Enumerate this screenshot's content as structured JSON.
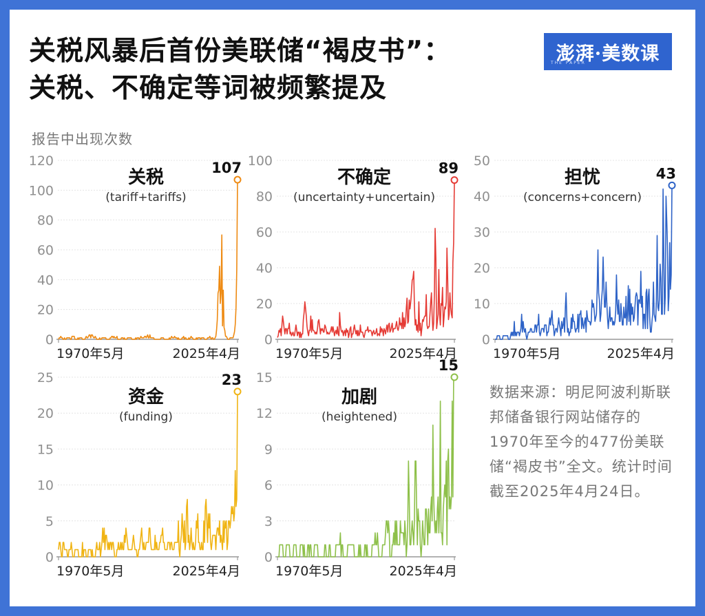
{
  "title_line1": "关税风暴后首份美联储“褐皮书”：",
  "title_line2": "关税、不确定等词被频繁提及",
  "logo": {
    "text": "澎湃·美数课",
    "subtext": "THE PAPER"
  },
  "unit_label": "报告中出现次数",
  "source_note": "数据来源：明尼阿波利斯联邦储备银行网站储存的1970年至今的477份美联储“褐皮书”全文。统计时间截至2025年4月24日。",
  "chart_data": [
    {
      "type": "line",
      "title": "关税",
      "subtitle": "(tariff+tariffs)",
      "color": "#ee8a12",
      "x_start": "1970年5月",
      "x_end": "2025年4月",
      "yticks": [
        0,
        20,
        40,
        60,
        80,
        100,
        120
      ],
      "ylim": [
        0,
        120
      ],
      "last_value": 107,
      "peak_label": "107",
      "anchors": [
        [
          0,
          0
        ],
        [
          0.3,
          1
        ],
        [
          0.7,
          0
        ],
        [
          1.2,
          2
        ],
        [
          2,
          1
        ],
        [
          2.5,
          0
        ],
        [
          3.5,
          1
        ],
        [
          4,
          0
        ],
        [
          5,
          1
        ],
        [
          6,
          1
        ],
        [
          7,
          0
        ],
        [
          8,
          2
        ],
        [
          9,
          1
        ],
        [
          10,
          0
        ],
        [
          12,
          1
        ],
        [
          14,
          0
        ],
        [
          16,
          1
        ],
        [
          18,
          3
        ],
        [
          20,
          1
        ],
        [
          22,
          0
        ],
        [
          25,
          1
        ],
        [
          28,
          0
        ],
        [
          30,
          2
        ],
        [
          32,
          1
        ],
        [
          34,
          0
        ],
        [
          36,
          1
        ],
        [
          38,
          0
        ],
        [
          40,
          1
        ],
        [
          42,
          0
        ],
        [
          45,
          1
        ],
        [
          48,
          1
        ],
        [
          50,
          2
        ],
        [
          52,
          1
        ],
        [
          55,
          0
        ],
        [
          58,
          1
        ],
        [
          60,
          0
        ],
        [
          63,
          1
        ],
        [
          66,
          1
        ],
        [
          68,
          0
        ],
        [
          70,
          1
        ],
        [
          72,
          0
        ],
        [
          74,
          1
        ],
        [
          76,
          0
        ],
        [
          78,
          1
        ],
        [
          80,
          1
        ],
        [
          82,
          0
        ],
        [
          84,
          1
        ],
        [
          86,
          1
        ],
        [
          87,
          0
        ],
        [
          88,
          4
        ],
        [
          88.5,
          20
        ],
        [
          89,
          50
        ],
        [
          89.5,
          30
        ],
        [
          90,
          48
        ],
        [
          90.5,
          20
        ],
        [
          91,
          45
        ],
        [
          91.5,
          15
        ],
        [
          92,
          25
        ],
        [
          92.5,
          5
        ],
        [
          93,
          2
        ],
        [
          94,
          1
        ],
        [
          95,
          0
        ],
        [
          96,
          1
        ],
        [
          97,
          1
        ],
        [
          98,
          2
        ],
        [
          98.8,
          8
        ],
        [
          99.3,
          40
        ],
        [
          100,
          107
        ]
      ]
    },
    {
      "type": "line",
      "title": "不确定",
      "subtitle": "(uncertainty+uncertain)",
      "color": "#e53b35",
      "x_start": "1970年5月",
      "x_end": "2025年4月",
      "yticks": [
        0,
        20,
        40,
        60,
        80,
        100
      ],
      "ylim": [
        0,
        100
      ],
      "last_value": 89,
      "peak_label": "89",
      "anchors": [
        [
          0,
          3
        ],
        [
          1,
          6
        ],
        [
          2,
          1
        ],
        [
          3,
          13
        ],
        [
          4,
          3
        ],
        [
          6,
          5
        ],
        [
          8,
          2
        ],
        [
          10,
          6
        ],
        [
          12,
          3
        ],
        [
          14,
          4
        ],
        [
          16,
          19
        ],
        [
          17,
          4
        ],
        [
          19,
          6
        ],
        [
          21,
          3
        ],
        [
          23,
          8
        ],
        [
          25,
          3
        ],
        [
          27,
          6
        ],
        [
          29,
          2
        ],
        [
          31,
          5
        ],
        [
          33,
          3
        ],
        [
          35,
          7
        ],
        [
          37,
          2
        ],
        [
          39,
          5
        ],
        [
          41,
          3
        ],
        [
          43,
          4
        ],
        [
          45,
          2
        ],
        [
          47,
          6
        ],
        [
          49,
          3
        ],
        [
          51,
          5
        ],
        [
          53,
          4
        ],
        [
          55,
          7
        ],
        [
          57,
          3
        ],
        [
          59,
          6
        ],
        [
          61,
          4
        ],
        [
          63,
          8
        ],
        [
          65,
          4
        ],
        [
          67,
          6
        ],
        [
          69,
          8
        ],
        [
          71,
          12
        ],
        [
          72,
          5
        ],
        [
          73,
          18
        ],
        [
          74,
          8
        ],
        [
          75,
          32
        ],
        [
          76,
          12
        ],
        [
          77,
          30
        ],
        [
          78,
          10
        ],
        [
          79,
          6
        ],
        [
          80,
          15
        ],
        [
          81,
          4
        ],
        [
          82,
          12
        ],
        [
          83,
          8
        ],
        [
          85,
          14
        ],
        [
          86,
          6
        ],
        [
          87,
          25
        ],
        [
          88,
          10
        ],
        [
          89,
          30
        ],
        [
          90,
          12
        ],
        [
          91,
          20
        ],
        [
          92,
          8
        ],
        [
          93,
          24
        ],
        [
          94,
          10
        ],
        [
          95,
          16
        ],
        [
          96,
          25
        ],
        [
          97,
          10
        ],
        [
          98,
          14
        ],
        [
          99,
          30
        ],
        [
          100,
          89
        ]
      ]
    },
    {
      "type": "line",
      "title": "担忧",
      "subtitle": "(concerns+concern)",
      "color": "#2e63c7",
      "x_start": "1970年5月",
      "x_end": "2025年4月",
      "yticks": [
        0,
        10,
        20,
        30,
        40,
        50
      ],
      "ylim": [
        0,
        50
      ],
      "last_value": 43,
      "peak_label": "43",
      "anchors": [
        [
          0,
          0
        ],
        [
          2,
          1
        ],
        [
          4,
          0
        ],
        [
          6,
          2
        ],
        [
          8,
          0
        ],
        [
          10,
          3
        ],
        [
          12,
          1
        ],
        [
          14,
          2
        ],
        [
          16,
          4
        ],
        [
          18,
          1
        ],
        [
          20,
          3
        ],
        [
          22,
          2
        ],
        [
          24,
          4
        ],
        [
          26,
          1
        ],
        [
          28,
          3
        ],
        [
          30,
          2
        ],
        [
          32,
          6
        ],
        [
          34,
          2
        ],
        [
          36,
          4
        ],
        [
          38,
          3
        ],
        [
          40,
          6
        ],
        [
          42,
          2
        ],
        [
          44,
          5
        ],
        [
          46,
          3
        ],
        [
          48,
          7
        ],
        [
          50,
          4
        ],
        [
          52,
          5
        ],
        [
          54,
          3
        ],
        [
          56,
          8
        ],
        [
          57,
          4
        ],
        [
          58,
          12
        ],
        [
          60,
          5
        ],
        [
          61,
          16
        ],
        [
          62,
          6
        ],
        [
          64,
          9
        ],
        [
          66,
          4
        ],
        [
          68,
          7
        ],
        [
          70,
          10
        ],
        [
          72,
          5
        ],
        [
          74,
          8
        ],
        [
          76,
          12
        ],
        [
          78,
          6
        ],
        [
          80,
          9
        ],
        [
          82,
          14
        ],
        [
          84,
          6
        ],
        [
          86,
          10
        ],
        [
          88,
          3
        ],
        [
          89,
          8
        ],
        [
          90,
          14
        ],
        [
          91,
          6
        ],
        [
          92,
          17
        ],
        [
          93,
          8
        ],
        [
          94,
          12
        ],
        [
          95,
          19
        ],
        [
          96,
          10
        ],
        [
          97,
          22
        ],
        [
          98,
          13
        ],
        [
          99,
          27
        ],
        [
          100,
          43
        ]
      ]
    },
    {
      "type": "line",
      "title": "资金",
      "subtitle": "(funding)",
      "color": "#f0b414",
      "x_start": "1970年5月",
      "x_end": "2025年4月",
      "yticks": [
        0,
        5,
        10,
        15,
        20,
        25
      ],
      "ylim": [
        0,
        25
      ],
      "last_value": 23,
      "peak_label": "23",
      "anchors": [
        [
          0,
          1
        ],
        [
          1,
          2
        ],
        [
          2,
          0
        ],
        [
          3,
          2
        ],
        [
          4,
          1
        ],
        [
          5,
          0
        ],
        [
          6,
          1
        ],
        [
          7,
          2
        ],
        [
          8,
          0
        ],
        [
          10,
          1
        ],
        [
          12,
          0
        ],
        [
          14,
          1
        ],
        [
          16,
          0
        ],
        [
          18,
          1
        ],
        [
          20,
          0
        ],
        [
          22,
          2
        ],
        [
          24,
          1
        ],
        [
          26,
          3
        ],
        [
          28,
          1
        ],
        [
          30,
          2
        ],
        [
          32,
          0
        ],
        [
          34,
          2
        ],
        [
          36,
          1
        ],
        [
          38,
          3
        ],
        [
          40,
          1
        ],
        [
          42,
          2
        ],
        [
          44,
          0
        ],
        [
          46,
          2
        ],
        [
          48,
          1
        ],
        [
          50,
          3
        ],
        [
          52,
          1
        ],
        [
          54,
          2
        ],
        [
          56,
          1
        ],
        [
          58,
          3
        ],
        [
          60,
          1
        ],
        [
          62,
          2
        ],
        [
          64,
          1
        ],
        [
          66,
          3
        ],
        [
          68,
          1
        ],
        [
          70,
          4
        ],
        [
          71,
          1
        ],
        [
          72,
          7
        ],
        [
          73,
          1
        ],
        [
          74,
          2
        ],
        [
          76,
          1
        ],
        [
          78,
          4
        ],
        [
          80,
          1
        ],
        [
          82,
          3
        ],
        [
          84,
          5
        ],
        [
          85,
          1
        ],
        [
          86,
          3
        ],
        [
          88,
          2
        ],
        [
          90,
          6
        ],
        [
          91,
          1
        ],
        [
          92,
          3
        ],
        [
          93,
          5
        ],
        [
          94,
          1
        ],
        [
          95,
          5
        ],
        [
          96,
          2
        ],
        [
          97,
          7
        ],
        [
          98,
          3
        ],
        [
          99,
          10
        ],
        [
          100,
          23
        ]
      ]
    },
    {
      "type": "line",
      "title": "加剧",
      "subtitle": "(heightened)",
      "color": "#8ec04a",
      "x_start": "1970年5月",
      "x_end": "2025年4月",
      "yticks": [
        0,
        3,
        6,
        9,
        12,
        15
      ],
      "ylim": [
        0,
        15
      ],
      "last_value": 15,
      "peak_label": "15",
      "anchors": [
        [
          0,
          0
        ],
        [
          2,
          1
        ],
        [
          4,
          0
        ],
        [
          6,
          1
        ],
        [
          8,
          0
        ],
        [
          10,
          1
        ],
        [
          12,
          0
        ],
        [
          14,
          1
        ],
        [
          16,
          0
        ],
        [
          18,
          1
        ],
        [
          20,
          0
        ],
        [
          22,
          1
        ],
        [
          24,
          0
        ],
        [
          26,
          1
        ],
        [
          28,
          0
        ],
        [
          30,
          1
        ],
        [
          32,
          0
        ],
        [
          34,
          1
        ],
        [
          36,
          1
        ],
        [
          38,
          0
        ],
        [
          40,
          1
        ],
        [
          42,
          1
        ],
        [
          44,
          0
        ],
        [
          46,
          1
        ],
        [
          48,
          0
        ],
        [
          50,
          1
        ],
        [
          52,
          0
        ],
        [
          54,
          1
        ],
        [
          56,
          2
        ],
        [
          58,
          0
        ],
        [
          60,
          1
        ],
        [
          62,
          2
        ],
        [
          64,
          0
        ],
        [
          66,
          2
        ],
        [
          68,
          1
        ],
        [
          70,
          3
        ],
        [
          71,
          1
        ],
        [
          72,
          2
        ],
        [
          73,
          0
        ],
        [
          74,
          6
        ],
        [
          75,
          1
        ],
        [
          76,
          3
        ],
        [
          77,
          1
        ],
        [
          78,
          6
        ],
        [
          79,
          2
        ],
        [
          80,
          4
        ],
        [
          81,
          1
        ],
        [
          82,
          3
        ],
        [
          83,
          1
        ],
        [
          84,
          4
        ],
        [
          85,
          1
        ],
        [
          86,
          3
        ],
        [
          88,
          5
        ],
        [
          89,
          1
        ],
        [
          90,
          4
        ],
        [
          91,
          2
        ],
        [
          92,
          6
        ],
        [
          93,
          1
        ],
        [
          94,
          4
        ],
        [
          95,
          11
        ],
        [
          96,
          2
        ],
        [
          97,
          8
        ],
        [
          98,
          5
        ],
        [
          99,
          6
        ],
        [
          100,
          15
        ]
      ]
    }
  ]
}
